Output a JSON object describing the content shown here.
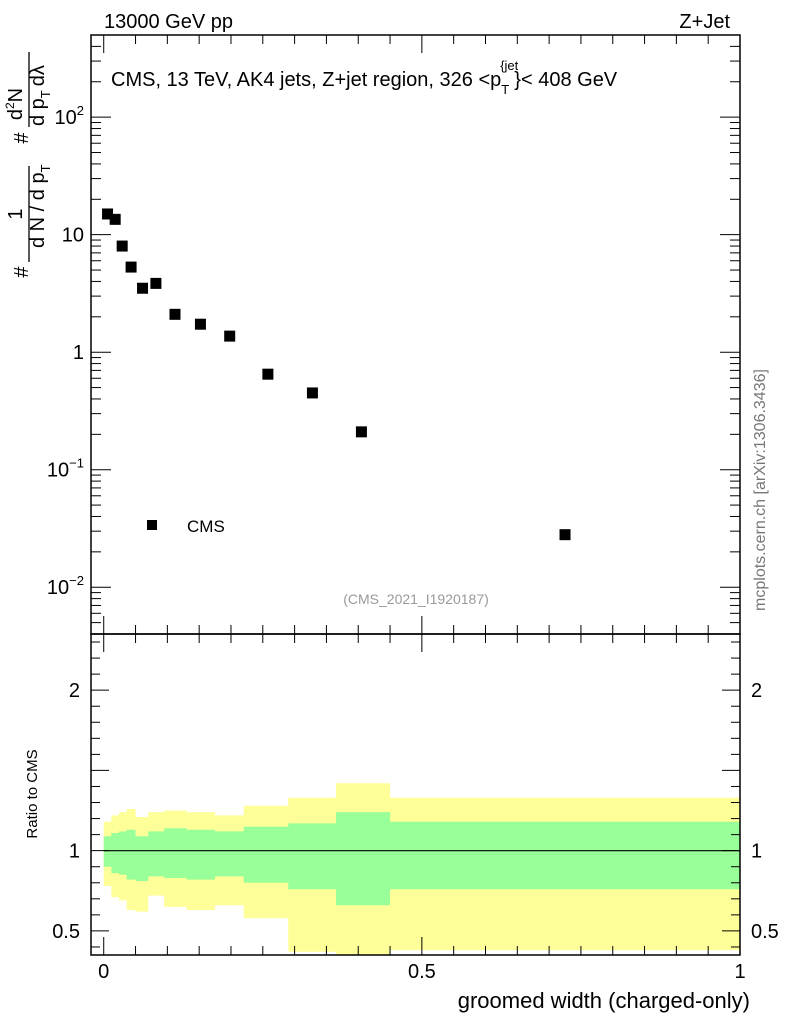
{
  "header": {
    "energy_label": "13000 GeV pp",
    "process_label": "Z+Jet"
  },
  "side_label": "mcplots.cern.ch [arXiv:1306.3436]",
  "chart_data": [
    {
      "type": "scatter",
      "title": "CMS, 13 TeV, AK4 jets, Z+jet region, 326 <p_T^{jet}< 408 GeV",
      "title_parts": {
        "main": "CMS, 13 TeV, AK4 jets, Z+jet region, 326 <p",
        "sub": "T",
        "sup": "{jet",
        "sup_close": "}",
        "tail": "< 408 GeV"
      },
      "ylabel_parts": {
        "hash1": "#",
        "frac_num": "1",
        "frac_den": "d N / d p",
        "den_sub": "T",
        "hash2": "#",
        "d2n_num": "d",
        "d2n_sup": "2",
        "d2n_n": "N",
        "d2n_den": "d p",
        "d2n_den_sub": "T",
        "d2n_dl": "dλ"
      },
      "yscale": "log",
      "ylim": [
        0.004,
        500
      ],
      "xlim": [
        -0.02,
        1.0
      ],
      "yticks": [
        {
          "value": 0.01,
          "base": "10",
          "exp": "−2"
        },
        {
          "value": 0.1,
          "base": "10",
          "exp": "−1"
        },
        {
          "value": 1,
          "label": "1"
        },
        {
          "value": 10,
          "label": "10"
        },
        {
          "value": 100,
          "base": "10",
          "exp": "2"
        }
      ],
      "series": [
        {
          "name": "CMS",
          "x": [
            0.006,
            0.018,
            0.029,
            0.043,
            0.061,
            0.082,
            0.112,
            0.152,
            0.198,
            0.258,
            0.328,
            0.405,
            0.725
          ],
          "y": [
            15.0,
            13.5,
            8.0,
            5.3,
            3.5,
            3.85,
            2.1,
            1.73,
            1.37,
            0.65,
            0.45,
            0.21,
            0.028
          ]
        }
      ],
      "legend": {
        "label": "CMS",
        "position": "bottom-left"
      },
      "watermark": "(CMS_2021_I1920187)"
    },
    {
      "type": "area",
      "ylabel": "Ratio to CMS",
      "xlabel": "groomed width (charged-only)",
      "ylim": [
        0.35,
        2.35
      ],
      "xlim": [
        -0.02,
        1.0
      ],
      "xticks": [
        {
          "value": 0,
          "label": "0"
        },
        {
          "value": 0.5,
          "label": "0.5"
        },
        {
          "value": 1,
          "label": "1"
        }
      ],
      "yticks_left": [
        {
          "value": 0.5,
          "label": "0.5"
        },
        {
          "value": 1,
          "label": "1"
        },
        {
          "value": 2,
          "label": "2"
        }
      ],
      "yticks_right": [
        {
          "value": 0.5,
          "label": "0.5"
        },
        {
          "value": 1,
          "label": "1"
        },
        {
          "value": 2,
          "label": "2"
        }
      ],
      "reference_line": 1.0,
      "bin_edges": [
        0.0,
        0.012,
        0.024,
        0.036,
        0.05,
        0.07,
        0.095,
        0.13,
        0.175,
        0.22,
        0.29,
        0.365,
        0.45,
        1.0
      ],
      "band_outer": {
        "low": [
          0.78,
          0.71,
          0.69,
          0.63,
          0.62,
          0.72,
          0.65,
          0.63,
          0.66,
          0.58,
          0.37,
          0.3,
          0.38
        ],
        "high": [
          1.18,
          1.22,
          1.24,
          1.26,
          1.21,
          1.24,
          1.25,
          1.24,
          1.22,
          1.28,
          1.33,
          1.42,
          1.33
        ]
      },
      "band_inner": {
        "low": [
          0.9,
          0.86,
          0.85,
          0.82,
          0.81,
          0.84,
          0.83,
          0.82,
          0.84,
          0.8,
          0.76,
          0.66,
          0.76
        ],
        "high": [
          1.09,
          1.11,
          1.12,
          1.13,
          1.09,
          1.12,
          1.14,
          1.13,
          1.12,
          1.15,
          1.17,
          1.24,
          1.18
        ]
      },
      "colors": {
        "outer": "#ffff99",
        "inner": "#99ff99",
        "line": "#000000"
      }
    }
  ]
}
